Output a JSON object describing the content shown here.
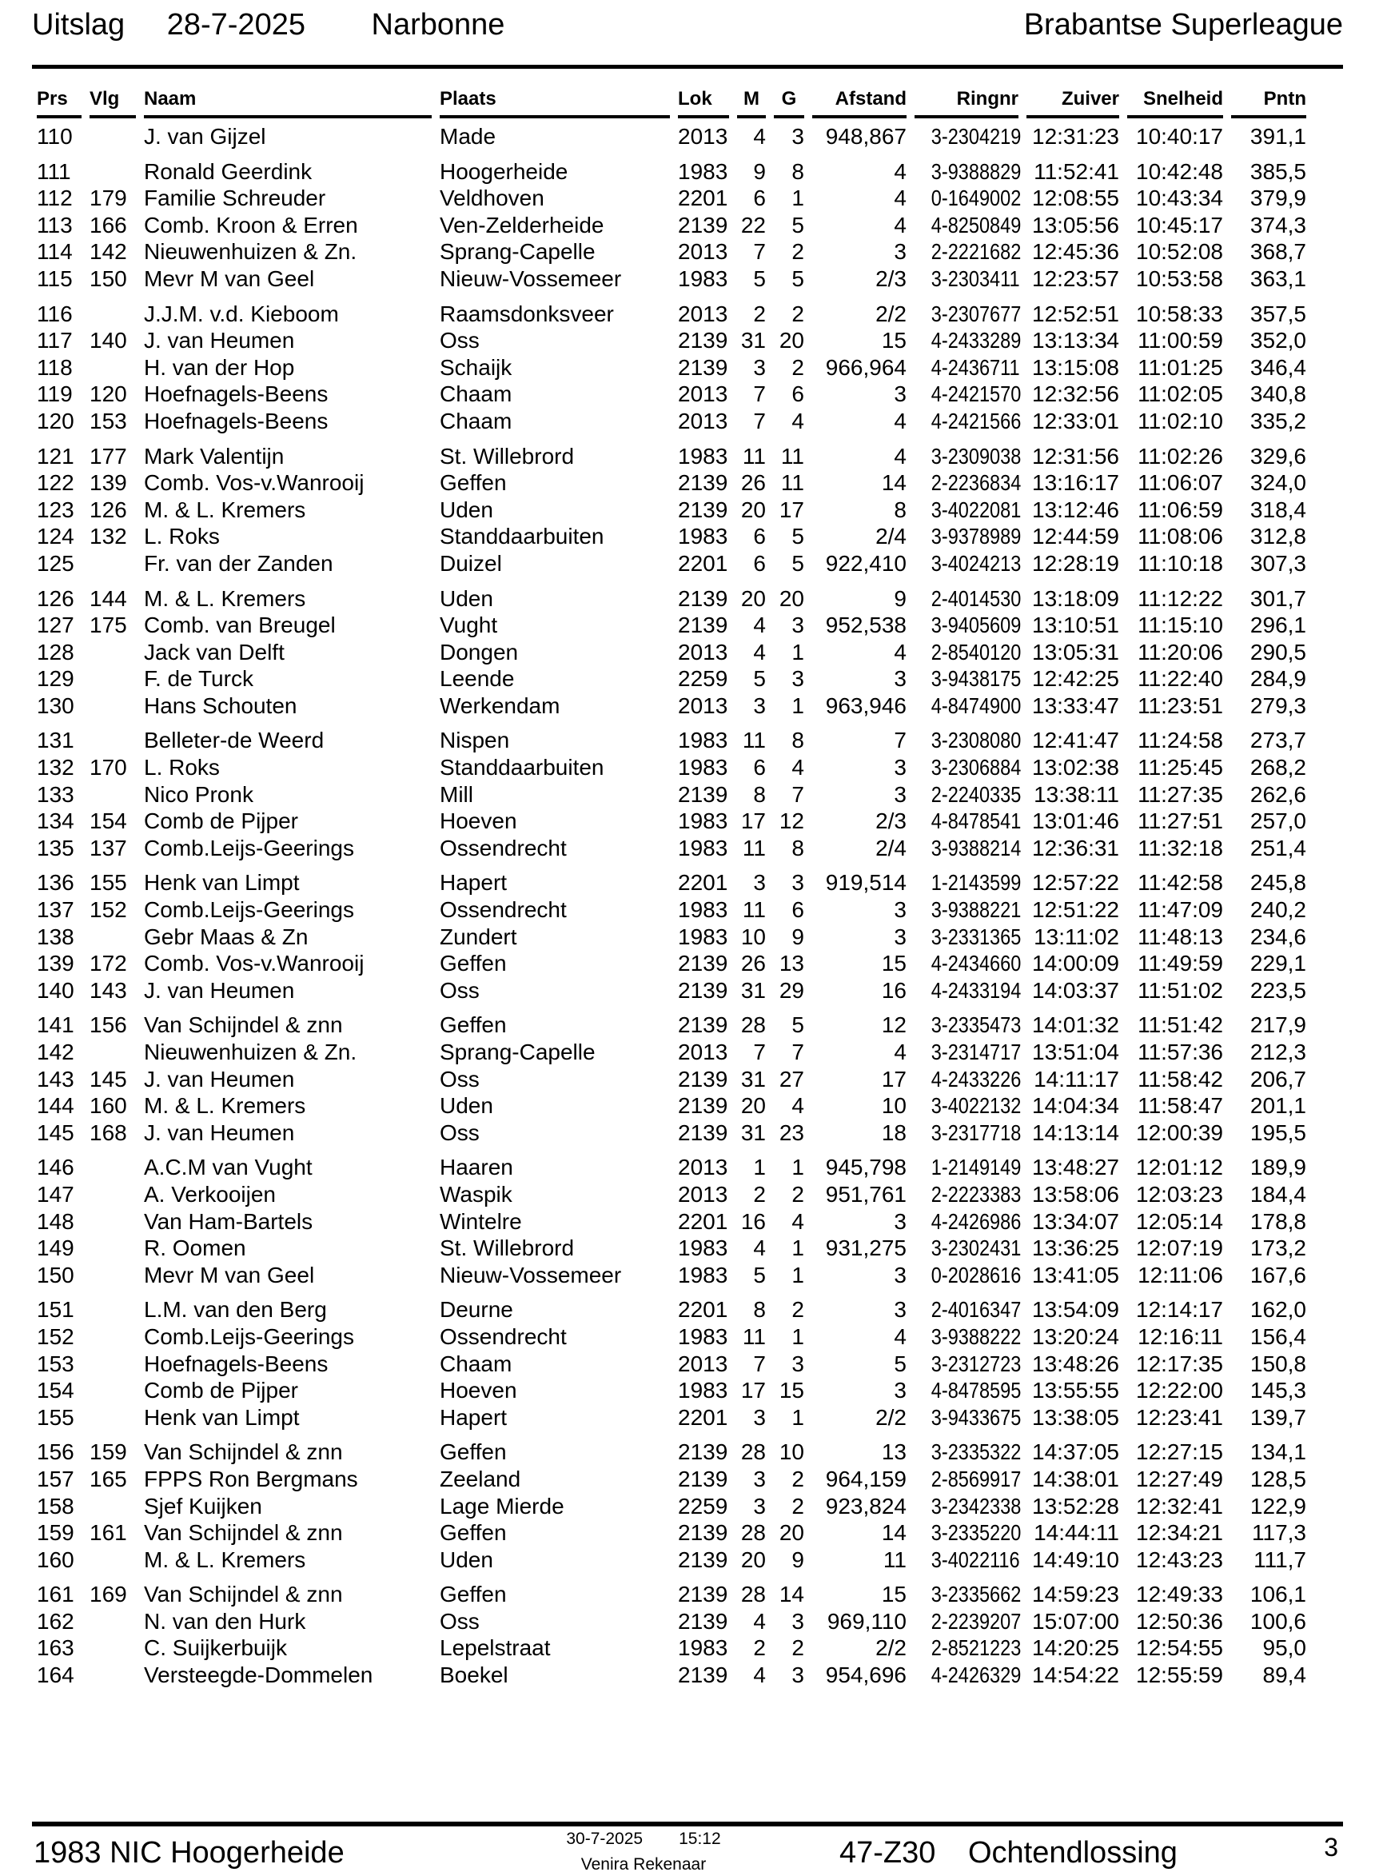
{
  "header": {
    "title_label": "Uitslag",
    "title_date": "28-7-2025",
    "title_race": "Narbonne",
    "title_right": "Brabantse Superleague"
  },
  "table": {
    "columns": [
      "Prs",
      "Vlg",
      "Naam",
      "Plaats",
      "Lok",
      "M",
      "G",
      "Afstand",
      "Ringnr",
      "Zuiver",
      "Snelheid",
      "Pntn"
    ],
    "groups": [
      [
        [
          "110",
          "",
          "J. van Gijzel",
          "Made",
          "2013",
          "4",
          "3",
          "948,867",
          "3-2304219",
          "12:31:23",
          "10:40:17",
          "391,1"
        ]
      ],
      [
        [
          "111",
          "",
          "Ronald Geerdink",
          "Hoogerheide",
          "1983",
          "9",
          "8",
          "4",
          "3-9388829",
          "11:52:41",
          "10:42:48",
          "385,5"
        ],
        [
          "112",
          "179",
          "Familie Schreuder",
          "Veldhoven",
          "2201",
          "6",
          "1",
          "4",
          "0-1649002",
          "12:08:55",
          "10:43:34",
          "379,9"
        ],
        [
          "113",
          "166",
          "Comb. Kroon & Erren",
          "Ven-Zelderheide",
          "2139",
          "22",
          "5",
          "4",
          "4-8250849",
          "13:05:56",
          "10:45:17",
          "374,3"
        ],
        [
          "114",
          "142",
          "Nieuwenhuizen & Zn.",
          "Sprang-Capelle",
          "2013",
          "7",
          "2",
          "3",
          "2-2221682",
          "12:45:36",
          "10:52:08",
          "368,7"
        ],
        [
          "115",
          "150",
          "Mevr M van Geel",
          "Nieuw-Vossemeer",
          "1983",
          "5",
          "5",
          "2/3",
          "3-2303411",
          "12:23:57",
          "10:53:58",
          "363,1"
        ]
      ],
      [
        [
          "116",
          "",
          "J.J.M. v.d. Kieboom",
          "Raamsdonksveer",
          "2013",
          "2",
          "2",
          "2/2",
          "3-2307677",
          "12:52:51",
          "10:58:33",
          "357,5"
        ],
        [
          "117",
          "140",
          "J. van Heumen",
          "Oss",
          "2139",
          "31",
          "20",
          "15",
          "4-2433289",
          "13:13:34",
          "11:00:59",
          "352,0"
        ],
        [
          "118",
          "",
          "H. van der Hop",
          "Schaijk",
          "2139",
          "3",
          "2",
          "966,964",
          "4-2436711",
          "13:15:08",
          "11:01:25",
          "346,4"
        ],
        [
          "119",
          "120",
          "Hoefnagels-Beens",
          "Chaam",
          "2013",
          "7",
          "6",
          "3",
          "4-2421570",
          "12:32:56",
          "11:02:05",
          "340,8"
        ],
        [
          "120",
          "153",
          "Hoefnagels-Beens",
          "Chaam",
          "2013",
          "7",
          "4",
          "4",
          "4-2421566",
          "12:33:01",
          "11:02:10",
          "335,2"
        ]
      ],
      [
        [
          "121",
          "177",
          "Mark Valentijn",
          "St. Willebrord",
          "1983",
          "11",
          "11",
          "4",
          "3-2309038",
          "12:31:56",
          "11:02:26",
          "329,6"
        ],
        [
          "122",
          "139",
          "Comb. Vos-v.Wanrooij",
          "Geffen",
          "2139",
          "26",
          "11",
          "14",
          "2-2236834",
          "13:16:17",
          "11:06:07",
          "324,0"
        ],
        [
          "123",
          "126",
          "M. & L. Kremers",
          "Uden",
          "2139",
          "20",
          "17",
          "8",
          "3-4022081",
          "13:12:46",
          "11:06:59",
          "318,4"
        ],
        [
          "124",
          "132",
          "L. Roks",
          "Standdaarbuiten",
          "1983",
          "6",
          "5",
          "2/4",
          "3-9378989",
          "12:44:59",
          "11:08:06",
          "312,8"
        ],
        [
          "125",
          "",
          "Fr. van der Zanden",
          "Duizel",
          "2201",
          "6",
          "5",
          "922,410",
          "3-4024213",
          "12:28:19",
          "11:10:18",
          "307,3"
        ]
      ],
      [
        [
          "126",
          "144",
          "M. & L. Kremers",
          "Uden",
          "2139",
          "20",
          "20",
          "9",
          "2-4014530",
          "13:18:09",
          "11:12:22",
          "301,7"
        ],
        [
          "127",
          "175",
          "Comb. van Breugel",
          "Vught",
          "2139",
          "4",
          "3",
          "952,538",
          "3-9405609",
          "13:10:51",
          "11:15:10",
          "296,1"
        ],
        [
          "128",
          "",
          "Jack van Delft",
          "Dongen",
          "2013",
          "4",
          "1",
          "4",
          "2-8540120",
          "13:05:31",
          "11:20:06",
          "290,5"
        ],
        [
          "129",
          "",
          "F. de Turck",
          "Leende",
          "2259",
          "5",
          "3",
          "3",
          "3-9438175",
          "12:42:25",
          "11:22:40",
          "284,9"
        ],
        [
          "130",
          "",
          "Hans Schouten",
          "Werkendam",
          "2013",
          "3",
          "1",
          "963,946",
          "4-8474900",
          "13:33:47",
          "11:23:51",
          "279,3"
        ]
      ],
      [
        [
          "131",
          "",
          "Belleter-de Weerd",
          "Nispen",
          "1983",
          "11",
          "8",
          "7",
          "3-2308080",
          "12:41:47",
          "11:24:58",
          "273,7"
        ],
        [
          "132",
          "170",
          "L. Roks",
          "Standdaarbuiten",
          "1983",
          "6",
          "4",
          "3",
          "3-2306884",
          "13:02:38",
          "11:25:45",
          "268,2"
        ],
        [
          "133",
          "",
          "Nico Pronk",
          "Mill",
          "2139",
          "8",
          "7",
          "3",
          "2-2240335",
          "13:38:11",
          "11:27:35",
          "262,6"
        ],
        [
          "134",
          "154",
          "Comb de Pijper",
          "Hoeven",
          "1983",
          "17",
          "12",
          "2/3",
          "4-8478541",
          "13:01:46",
          "11:27:51",
          "257,0"
        ],
        [
          "135",
          "137",
          "Comb.Leijs-Geerings",
          "Ossendrecht",
          "1983",
          "11",
          "8",
          "2/4",
          "3-9388214",
          "12:36:31",
          "11:32:18",
          "251,4"
        ]
      ],
      [
        [
          "136",
          "155",
          "Henk van Limpt",
          "Hapert",
          "2201",
          "3",
          "3",
          "919,514",
          "1-2143599",
          "12:57:22",
          "11:42:58",
          "245,8"
        ],
        [
          "137",
          "152",
          "Comb.Leijs-Geerings",
          "Ossendrecht",
          "1983",
          "11",
          "6",
          "3",
          "3-9388221",
          "12:51:22",
          "11:47:09",
          "240,2"
        ],
        [
          "138",
          "",
          "Gebr Maas & Zn",
          "Zundert",
          "1983",
          "10",
          "9",
          "3",
          "3-2331365",
          "13:11:02",
          "11:48:13",
          "234,6"
        ],
        [
          "139",
          "172",
          "Comb. Vos-v.Wanrooij",
          "Geffen",
          "2139",
          "26",
          "13",
          "15",
          "4-2434660",
          "14:00:09",
          "11:49:59",
          "229,1"
        ],
        [
          "140",
          "143",
          "J. van Heumen",
          "Oss",
          "2139",
          "31",
          "29",
          "16",
          "4-2433194",
          "14:03:37",
          "11:51:02",
          "223,5"
        ]
      ],
      [
        [
          "141",
          "156",
          "Van Schijndel & znn",
          "Geffen",
          "2139",
          "28",
          "5",
          "12",
          "3-2335473",
          "14:01:32",
          "11:51:42",
          "217,9"
        ],
        [
          "142",
          "",
          "Nieuwenhuizen & Zn.",
          "Sprang-Capelle",
          "2013",
          "7",
          "7",
          "4",
          "3-2314717",
          "13:51:04",
          "11:57:36",
          "212,3"
        ],
        [
          "143",
          "145",
          "J. van Heumen",
          "Oss",
          "2139",
          "31",
          "27",
          "17",
          "4-2433226",
          "14:11:17",
          "11:58:42",
          "206,7"
        ],
        [
          "144",
          "160",
          "M. & L. Kremers",
          "Uden",
          "2139",
          "20",
          "4",
          "10",
          "3-4022132",
          "14:04:34",
          "11:58:47",
          "201,1"
        ],
        [
          "145",
          "168",
          "J. van Heumen",
          "Oss",
          "2139",
          "31",
          "23",
          "18",
          "3-2317718",
          "14:13:14",
          "12:00:39",
          "195,5"
        ]
      ],
      [
        [
          "146",
          "",
          "A.C.M van Vught",
          "Haaren",
          "2013",
          "1",
          "1",
          "945,798",
          "1-2149149",
          "13:48:27",
          "12:01:12",
          "189,9"
        ],
        [
          "147",
          "",
          "A. Verkooijen",
          "Waspik",
          "2013",
          "2",
          "2",
          "951,761",
          "2-2223383",
          "13:58:06",
          "12:03:23",
          "184,4"
        ],
        [
          "148",
          "",
          "Van Ham-Bartels",
          "Wintelre",
          "2201",
          "16",
          "4",
          "3",
          "4-2426986",
          "13:34:07",
          "12:05:14",
          "178,8"
        ],
        [
          "149",
          "",
          "R. Oomen",
          "St. Willebrord",
          "1983",
          "4",
          "1",
          "931,275",
          "3-2302431",
          "13:36:25",
          "12:07:19",
          "173,2"
        ],
        [
          "150",
          "",
          "Mevr M van Geel",
          "Nieuw-Vossemeer",
          "1983",
          "5",
          "1",
          "3",
          "0-2028616",
          "13:41:05",
          "12:11:06",
          "167,6"
        ]
      ],
      [
        [
          "151",
          "",
          "L.M. van den Berg",
          "Deurne",
          "2201",
          "8",
          "2",
          "3",
          "2-4016347",
          "13:54:09",
          "12:14:17",
          "162,0"
        ],
        [
          "152",
          "",
          "Comb.Leijs-Geerings",
          "Ossendrecht",
          "1983",
          "11",
          "1",
          "4",
          "3-9388222",
          "13:20:24",
          "12:16:11",
          "156,4"
        ],
        [
          "153",
          "",
          "Hoefnagels-Beens",
          "Chaam",
          "2013",
          "7",
          "3",
          "5",
          "3-2312723",
          "13:48:26",
          "12:17:35",
          "150,8"
        ],
        [
          "154",
          "",
          "Comb de Pijper",
          "Hoeven",
          "1983",
          "17",
          "15",
          "3",
          "4-8478595",
          "13:55:55",
          "12:22:00",
          "145,3"
        ],
        [
          "155",
          "",
          "Henk van Limpt",
          "Hapert",
          "2201",
          "3",
          "1",
          "2/2",
          "3-9433675",
          "13:38:05",
          "12:23:41",
          "139,7"
        ]
      ],
      [
        [
          "156",
          "159",
          "Van Schijndel & znn",
          "Geffen",
          "2139",
          "28",
          "10",
          "13",
          "3-2335322",
          "14:37:05",
          "12:27:15",
          "134,1"
        ],
        [
          "157",
          "165",
          "FPPS Ron Bergmans",
          "Zeeland",
          "2139",
          "3",
          "2",
          "964,159",
          "2-8569917",
          "14:38:01",
          "12:27:49",
          "128,5"
        ],
        [
          "158",
          "",
          "Sjef Kuijken",
          "Lage Mierde",
          "2259",
          "3",
          "2",
          "923,824",
          "3-2342338",
          "13:52:28",
          "12:32:41",
          "122,9"
        ],
        [
          "159",
          "161",
          "Van Schijndel & znn",
          "Geffen",
          "2139",
          "28",
          "20",
          "14",
          "3-2335220",
          "14:44:11",
          "12:34:21",
          "117,3"
        ],
        [
          "160",
          "",
          "M. & L. Kremers",
          "Uden",
          "2139",
          "20",
          "9",
          "11",
          "3-4022116",
          "14:49:10",
          "12:43:23",
          "111,7"
        ]
      ],
      [
        [
          "161",
          "169",
          "Van Schijndel & znn",
          "Geffen",
          "2139",
          "28",
          "14",
          "15",
          "3-2335662",
          "14:59:23",
          "12:49:33",
          "106,1"
        ],
        [
          "162",
          "",
          "N. van den Hurk",
          "Oss",
          "2139",
          "4",
          "3",
          "969,110",
          "2-2239207",
          "15:07:00",
          "12:50:36",
          "100,6"
        ],
        [
          "163",
          "",
          "C. Suijkerbuijk",
          "Lepelstraat",
          "1983",
          "2",
          "2",
          "2/2",
          "2-8521223",
          "14:20:25",
          "12:54:55",
          "95,0"
        ],
        [
          "164",
          "",
          "Versteegde-Dommelen",
          "Boekel",
          "2139",
          "4",
          "3",
          "954,696",
          "4-2426329",
          "14:54:22",
          "12:55:59",
          "89,4"
        ]
      ]
    ]
  },
  "footer": {
    "club": "1983 NIC Hoogerheide",
    "print_date": "30-7-2025",
    "print_time": "15:12",
    "software": "Venira Rekenaar",
    "race_code": "47-Z30",
    "release": "Ochtendlossing",
    "page": "3"
  }
}
